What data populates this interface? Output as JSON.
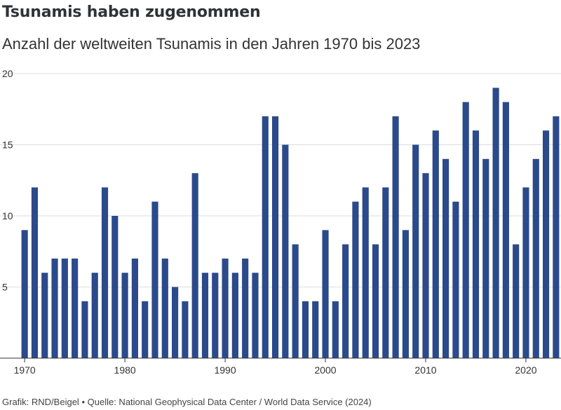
{
  "header": {
    "title": "Tsunamis haben zugenommen",
    "subtitle": "Anzahl der weltweiten Tsunamis in den Jahren 1970 bis 2023"
  },
  "footer": {
    "credit": "Grafik: RND/Beigel",
    "separator": "•",
    "source": "Quelle: National Geophysical Data Center / World Data Service (2024)"
  },
  "colors": {
    "bar": "#2b4a8b",
    "grid": "#dddddd",
    "axis": "#333333"
  },
  "chart_data": {
    "type": "bar",
    "title": "Tsunamis haben zugenommen",
    "subtitle": "Anzahl der weltweiten Tsunamis in den Jahren 1970 bis 2023",
    "xlabel": "",
    "ylabel": "",
    "ylim": [
      0,
      20
    ],
    "yticks": [
      5,
      10,
      15,
      20
    ],
    "xticks": [
      1970,
      1980,
      1990,
      2000,
      2010,
      2020
    ],
    "grid": true,
    "legend": "none",
    "categories": [
      1970,
      1971,
      1972,
      1973,
      1974,
      1975,
      1976,
      1977,
      1978,
      1979,
      1980,
      1981,
      1982,
      1983,
      1984,
      1985,
      1986,
      1987,
      1988,
      1989,
      1990,
      1991,
      1992,
      1993,
      1994,
      1995,
      1996,
      1997,
      1998,
      1999,
      2000,
      2001,
      2002,
      2003,
      2004,
      2005,
      2006,
      2007,
      2008,
      2009,
      2010,
      2011,
      2012,
      2013,
      2014,
      2015,
      2016,
      2017,
      2018,
      2019,
      2020,
      2021,
      2022,
      2023
    ],
    "values": [
      9,
      12,
      6,
      7,
      7,
      7,
      4,
      6,
      12,
      10,
      6,
      7,
      4,
      11,
      7,
      5,
      4,
      13,
      6,
      6,
      7,
      6,
      7,
      6,
      17,
      17,
      15,
      8,
      4,
      4,
      9,
      4,
      8,
      11,
      12,
      8,
      12,
      17,
      9,
      15,
      13,
      16,
      14,
      11,
      18,
      16,
      14,
      19,
      18,
      8,
      12,
      14,
      16,
      17
    ]
  }
}
